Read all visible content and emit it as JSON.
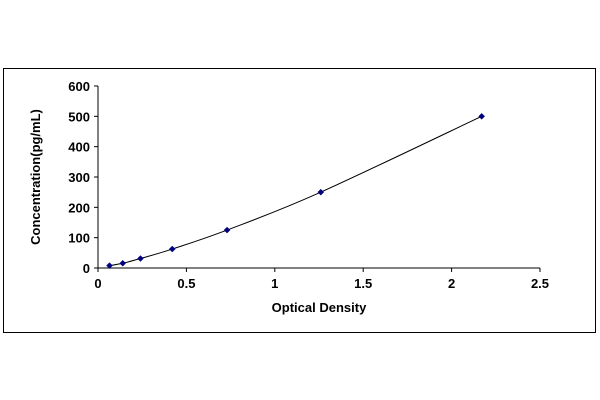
{
  "chart_data": {
    "type": "scatter",
    "title": "",
    "xlabel": "Optical Density",
    "ylabel": "Concentration(pg/mL)",
    "xlim": [
      0,
      2.5
    ],
    "ylim": [
      0,
      600
    ],
    "x_ticks": [
      "0",
      "0.5",
      "1",
      "1.5",
      "2",
      "2.5"
    ],
    "y_ticks": [
      "0",
      "100",
      "200",
      "300",
      "400",
      "500",
      "600"
    ],
    "grid": false,
    "legend": "none",
    "series": [
      {
        "points": [
          {
            "x": 0.065,
            "y": 7.8
          },
          {
            "x": 0.14,
            "y": 15.6
          },
          {
            "x": 0.24,
            "y": 31.2
          },
          {
            "x": 0.42,
            "y": 62.5
          },
          {
            "x": 0.73,
            "y": 125
          },
          {
            "x": 1.26,
            "y": 250
          },
          {
            "x": 2.17,
            "y": 500
          }
        ],
        "trendline": "smooth-fit",
        "color": "#000080"
      }
    ]
  }
}
